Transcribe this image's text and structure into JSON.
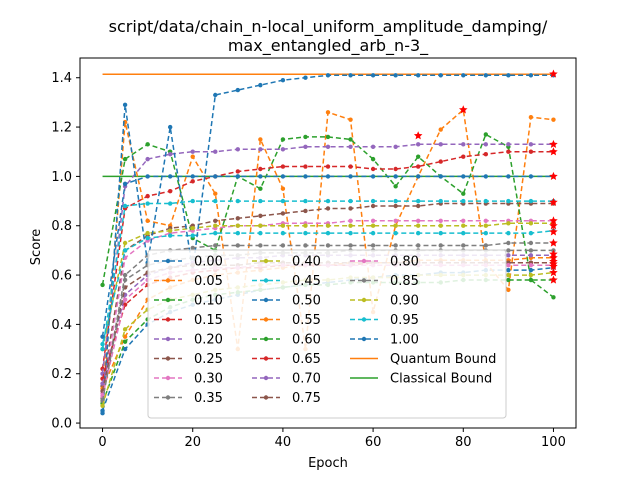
{
  "chart_data": {
    "type": "line",
    "title": "script/data/chain_n-local_uniform_amplitude_damping/\nmax_entangled_arb_n-3_",
    "title_lines": [
      "script/data/chain_n-local_uniform_amplitude_damping/",
      "max_entangled_arb_n-3_"
    ],
    "xlabel": "Epoch",
    "ylabel": "Score",
    "xlim": [
      -5,
      105
    ],
    "ylim": [
      -0.02,
      1.48
    ],
    "xticks": [
      0,
      20,
      40,
      60,
      80,
      100
    ],
    "xtick_labels": [
      "0",
      "20",
      "40",
      "60",
      "80",
      "100"
    ],
    "yticks": [
      0.0,
      0.2,
      0.4,
      0.6,
      0.8,
      1.0,
      1.2,
      1.4
    ],
    "ytick_labels": [
      "0.0",
      "0.2",
      "0.4",
      "0.6",
      "0.8",
      "1.0",
      "1.2",
      "1.4"
    ],
    "grid": false,
    "legend_placement": "lower-center",
    "x": [
      0,
      5,
      10,
      15,
      20,
      25,
      30,
      35,
      40,
      45,
      50,
      55,
      60,
      65,
      70,
      75,
      80,
      85,
      90,
      95,
      100
    ],
    "series": [
      {
        "name": "0.00",
        "color": "#1f77b4",
        "values": [
          0.05,
          0.3,
          0.4,
          0.45,
          0.48,
          0.5,
          0.52,
          0.54,
          0.55,
          0.56,
          0.57,
          0.58,
          0.59,
          0.6,
          0.6,
          0.61,
          0.61,
          0.62,
          0.62,
          0.62,
          0.63
        ]
      },
      {
        "name": "0.05",
        "color": "#ff7f0e",
        "values": [
          0.1,
          1.22,
          0.82,
          0.8,
          1.08,
          0.93,
          0.3,
          1.15,
          0.95,
          0.3,
          1.26,
          1.23,
          0.45,
          0.8,
          1.0,
          1.19,
          1.27,
          0.65,
          0.54,
          1.24,
          1.23
        ]
      },
      {
        "name": "0.10",
        "color": "#2ca02c",
        "values": [
          0.56,
          1.07,
          1.13,
          1.1,
          0.75,
          0.7,
          1.0,
          0.95,
          1.15,
          1.16,
          1.16,
          1.15,
          1.07,
          0.96,
          1.08,
          1.0,
          0.93,
          1.17,
          1.12,
          0.58,
          0.51
        ]
      },
      {
        "name": "0.15",
        "color": "#d62728",
        "values": [
          0.22,
          0.87,
          0.92,
          0.94,
          0.98,
          1.0,
          1.02,
          1.03,
          1.04,
          1.04,
          1.04,
          1.04,
          1.03,
          1.03,
          1.04,
          1.06,
          1.08,
          1.09,
          1.1,
          1.1,
          1.1
        ]
      },
      {
        "name": "0.20",
        "color": "#9467bd",
        "values": [
          0.2,
          0.96,
          1.07,
          1.09,
          1.1,
          1.1,
          1.11,
          1.11,
          1.11,
          1.12,
          1.12,
          1.12,
          1.12,
          1.12,
          1.13,
          1.13,
          1.13,
          1.13,
          1.13,
          1.13,
          1.13
        ]
      },
      {
        "name": "0.25",
        "color": "#8c564b",
        "values": [
          0.15,
          0.7,
          0.76,
          0.79,
          0.8,
          0.82,
          0.83,
          0.84,
          0.85,
          0.86,
          0.87,
          0.87,
          0.88,
          0.88,
          0.88,
          0.89,
          0.89,
          0.89,
          0.89,
          0.89,
          0.89
        ]
      },
      {
        "name": "0.30",
        "color": "#e377c2",
        "values": [
          0.12,
          0.67,
          0.74,
          0.77,
          0.78,
          0.79,
          0.8,
          0.8,
          0.81,
          0.81,
          0.81,
          0.82,
          0.82,
          0.82,
          0.82,
          0.82,
          0.82,
          0.82,
          0.82,
          0.82,
          0.82
        ]
      },
      {
        "name": "0.35",
        "color": "#7f7f7f",
        "values": [
          0.1,
          0.6,
          0.68,
          0.7,
          0.71,
          0.72,
          0.72,
          0.72,
          0.72,
          0.72,
          0.72,
          0.72,
          0.72,
          0.72,
          0.72,
          0.72,
          0.72,
          0.72,
          0.73,
          0.73,
          0.73
        ]
      },
      {
        "name": "0.40",
        "color": "#bcbd22",
        "values": [
          0.3,
          0.73,
          0.77,
          0.78,
          0.79,
          0.8,
          0.8,
          0.8,
          0.8,
          0.8,
          0.8,
          0.8,
          0.8,
          0.8,
          0.8,
          0.8,
          0.8,
          0.8,
          0.81,
          0.81,
          0.81
        ]
      },
      {
        "name": "0.45",
        "color": "#17becf",
        "values": [
          0.32,
          0.7,
          0.75,
          0.76,
          0.76,
          0.77,
          0.77,
          0.77,
          0.77,
          0.77,
          0.77,
          0.77,
          0.77,
          0.77,
          0.77,
          0.77,
          0.77,
          0.77,
          0.77,
          0.77,
          0.78
        ]
      },
      {
        "name": "0.50",
        "color": "#1f77b4",
        "values": [
          0.04,
          1.29,
          0.65,
          1.2,
          0.62,
          1.33,
          1.35,
          1.37,
          1.39,
          1.4,
          1.41,
          1.41,
          1.41,
          1.41,
          1.41,
          1.41,
          1.41,
          1.41,
          1.41,
          1.41,
          1.41
        ]
      },
      {
        "name": "0.55",
        "color": "#ff7f0e",
        "values": [
          0.14,
          0.35,
          0.5,
          0.55,
          0.58,
          0.6,
          0.61,
          0.62,
          0.63,
          0.64,
          0.64,
          0.65,
          0.65,
          0.65,
          0.66,
          0.66,
          0.66,
          0.66,
          0.66,
          0.67,
          0.67
        ]
      },
      {
        "name": "0.60",
        "color": "#2ca02c",
        "values": [
          0.08,
          0.33,
          0.42,
          0.47,
          0.5,
          0.52,
          0.53,
          0.54,
          0.55,
          0.56,
          0.56,
          0.57,
          0.57,
          0.57,
          0.57,
          0.57,
          0.58,
          0.58,
          0.58,
          0.58,
          0.58
        ]
      },
      {
        "name": "0.65",
        "color": "#d62728",
        "values": [
          0.18,
          0.48,
          0.56,
          0.59,
          0.61,
          0.62,
          0.63,
          0.63,
          0.64,
          0.64,
          0.64,
          0.64,
          0.65,
          0.65,
          0.65,
          0.65,
          0.65,
          0.65,
          0.65,
          0.65,
          0.65
        ]
      },
      {
        "name": "0.70",
        "color": "#9467bd",
        "values": [
          0.16,
          0.52,
          0.6,
          0.63,
          0.65,
          0.66,
          0.67,
          0.67,
          0.68,
          0.68,
          0.68,
          0.68,
          0.68,
          0.68,
          0.68,
          0.68,
          0.68,
          0.68,
          0.68,
          0.68,
          0.68
        ]
      },
      {
        "name": "0.75",
        "color": "#8c564b",
        "values": [
          0.13,
          0.55,
          0.61,
          0.63,
          0.64,
          0.64,
          0.64,
          0.65,
          0.65,
          0.65,
          0.65,
          0.65,
          0.65,
          0.65,
          0.65,
          0.65,
          0.65,
          0.65,
          0.65,
          0.65,
          0.65
        ]
      },
      {
        "name": "0.80",
        "color": "#e377c2",
        "values": [
          0.11,
          0.5,
          0.58,
          0.61,
          0.62,
          0.63,
          0.63,
          0.64,
          0.64,
          0.64,
          0.64,
          0.64,
          0.64,
          0.64,
          0.64,
          0.64,
          0.64,
          0.64,
          0.64,
          0.64,
          0.64
        ]
      },
      {
        "name": "0.85",
        "color": "#7f7f7f",
        "values": [
          0.09,
          0.58,
          0.64,
          0.66,
          0.67,
          0.68,
          0.68,
          0.69,
          0.69,
          0.69,
          0.69,
          0.7,
          0.7,
          0.7,
          0.7,
          0.7,
          0.7,
          0.7,
          0.7,
          0.7,
          0.7
        ]
      },
      {
        "name": "0.90",
        "color": "#bcbd22",
        "values": [
          0.07,
          0.38,
          0.46,
          0.5,
          0.52,
          0.54,
          0.55,
          0.56,
          0.57,
          0.58,
          0.58,
          0.59,
          0.59,
          0.59,
          0.6,
          0.6,
          0.6,
          0.6,
          0.6,
          0.6,
          0.61
        ]
      },
      {
        "name": "0.95",
        "color": "#17becf",
        "values": [
          0.3,
          0.88,
          0.89,
          0.89,
          0.9,
          0.9,
          0.9,
          0.9,
          0.9,
          0.9,
          0.9,
          0.9,
          0.9,
          0.9,
          0.9,
          0.9,
          0.9,
          0.9,
          0.9,
          0.9,
          0.9
        ]
      },
      {
        "name": "1.00",
        "color": "#1f77b4",
        "values": [
          0.35,
          0.97,
          1.0,
          1.0,
          1.0,
          1.0,
          1.0,
          1.0,
          1.0,
          1.0,
          1.0,
          1.0,
          1.0,
          1.0,
          1.0,
          1.0,
          1.0,
          1.0,
          1.0,
          1.0,
          1.0
        ]
      }
    ],
    "bounds": [
      {
        "name": "Quantum Bound",
        "color": "#ff7f0e",
        "value": 1.414,
        "x_range": [
          0,
          100
        ]
      },
      {
        "name": "Classical Bound",
        "color": "#2ca02c",
        "value": 1.0,
        "x_range": [
          0,
          100
        ]
      }
    ],
    "markers": {
      "star_color": "#ff0000",
      "stars": [
        {
          "x": 70,
          "y": 1.165
        },
        {
          "x": 80,
          "y": 1.27
        },
        {
          "x": 100,
          "y": 1.415
        },
        {
          "x": 100,
          "y": 1.13
        },
        {
          "x": 100,
          "y": 1.1
        },
        {
          "x": 100,
          "y": 1.0
        },
        {
          "x": 100,
          "y": 0.895
        },
        {
          "x": 100,
          "y": 0.82
        },
        {
          "x": 100,
          "y": 0.8
        },
        {
          "x": 100,
          "y": 0.775
        },
        {
          "x": 100,
          "y": 0.73
        },
        {
          "x": 100,
          "y": 0.685
        },
        {
          "x": 100,
          "y": 0.67
        },
        {
          "x": 100,
          "y": 0.655
        },
        {
          "x": 100,
          "y": 0.645
        },
        {
          "x": 100,
          "y": 0.635
        },
        {
          "x": 100,
          "y": 0.61
        },
        {
          "x": 100,
          "y": 0.58
        }
      ]
    }
  }
}
